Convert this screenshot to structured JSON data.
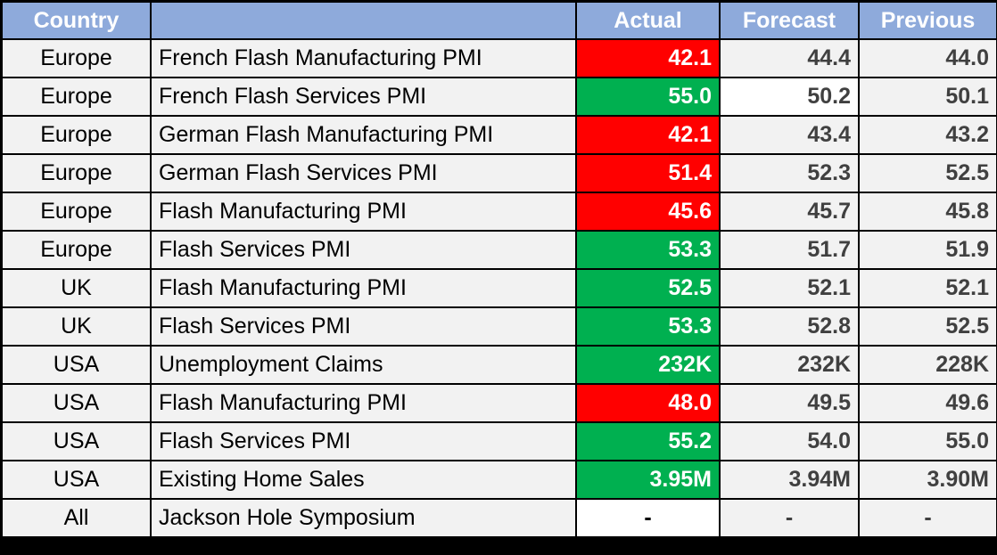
{
  "colors": {
    "header_bg": "#8eaadb",
    "negative": "#ff0000",
    "positive": "#00b050",
    "row_bg": "#f2f2f2"
  },
  "headers": {
    "country": "Country",
    "event": "",
    "actual": "Actual",
    "forecast": "Forecast",
    "previous": "Previous"
  },
  "rows": [
    {
      "country": "Europe",
      "event": "French Flash Manufacturing PMI",
      "actual": "42.1",
      "forecast": "44.4",
      "previous": "44.0",
      "status": "negative"
    },
    {
      "country": "Europe",
      "event": "French Flash Services PMI",
      "actual": "55.0",
      "forecast": "50.2",
      "previous": "50.1",
      "status": "positive"
    },
    {
      "country": "Europe",
      "event": "German Flash Manufacturing PMI",
      "actual": "42.1",
      "forecast": "43.4",
      "previous": "43.2",
      "status": "negative"
    },
    {
      "country": "Europe",
      "event": "German Flash Services PMI",
      "actual": "51.4",
      "forecast": "52.3",
      "previous": "52.5",
      "status": "negative"
    },
    {
      "country": "Europe",
      "event": "Flash Manufacturing PMI",
      "actual": "45.6",
      "forecast": "45.7",
      "previous": "45.8",
      "status": "negative"
    },
    {
      "country": "Europe",
      "event": "Flash Services PMI",
      "actual": "53.3",
      "forecast": "51.7",
      "previous": "51.9",
      "status": "positive"
    },
    {
      "country": "UK",
      "event": "Flash Manufacturing PMI",
      "actual": "52.5",
      "forecast": "52.1",
      "previous": "52.1",
      "status": "positive"
    },
    {
      "country": "UK",
      "event": "Flash Services PMI",
      "actual": "53.3",
      "forecast": "52.8",
      "previous": "52.5",
      "status": "positive"
    },
    {
      "country": "USA",
      "event": "Unemployment Claims",
      "actual": "232K",
      "forecast": "232K",
      "previous": "228K",
      "status": "positive"
    },
    {
      "country": "USA",
      "event": "Flash Manufacturing PMI",
      "actual": "48.0",
      "forecast": "49.5",
      "previous": "49.6",
      "status": "negative"
    },
    {
      "country": "USA",
      "event": "Flash Services PMI",
      "actual": "55.2",
      "forecast": "54.0",
      "previous": "55.0",
      "status": "positive"
    },
    {
      "country": "USA",
      "event": "Existing Home Sales",
      "actual": "3.95M",
      "forecast": "3.94M",
      "previous": "3.90M",
      "status": "positive"
    },
    {
      "country": "All",
      "event": "Jackson Hole Symposium",
      "actual": "-",
      "forecast": "-",
      "previous": "-",
      "status": "none"
    }
  ]
}
